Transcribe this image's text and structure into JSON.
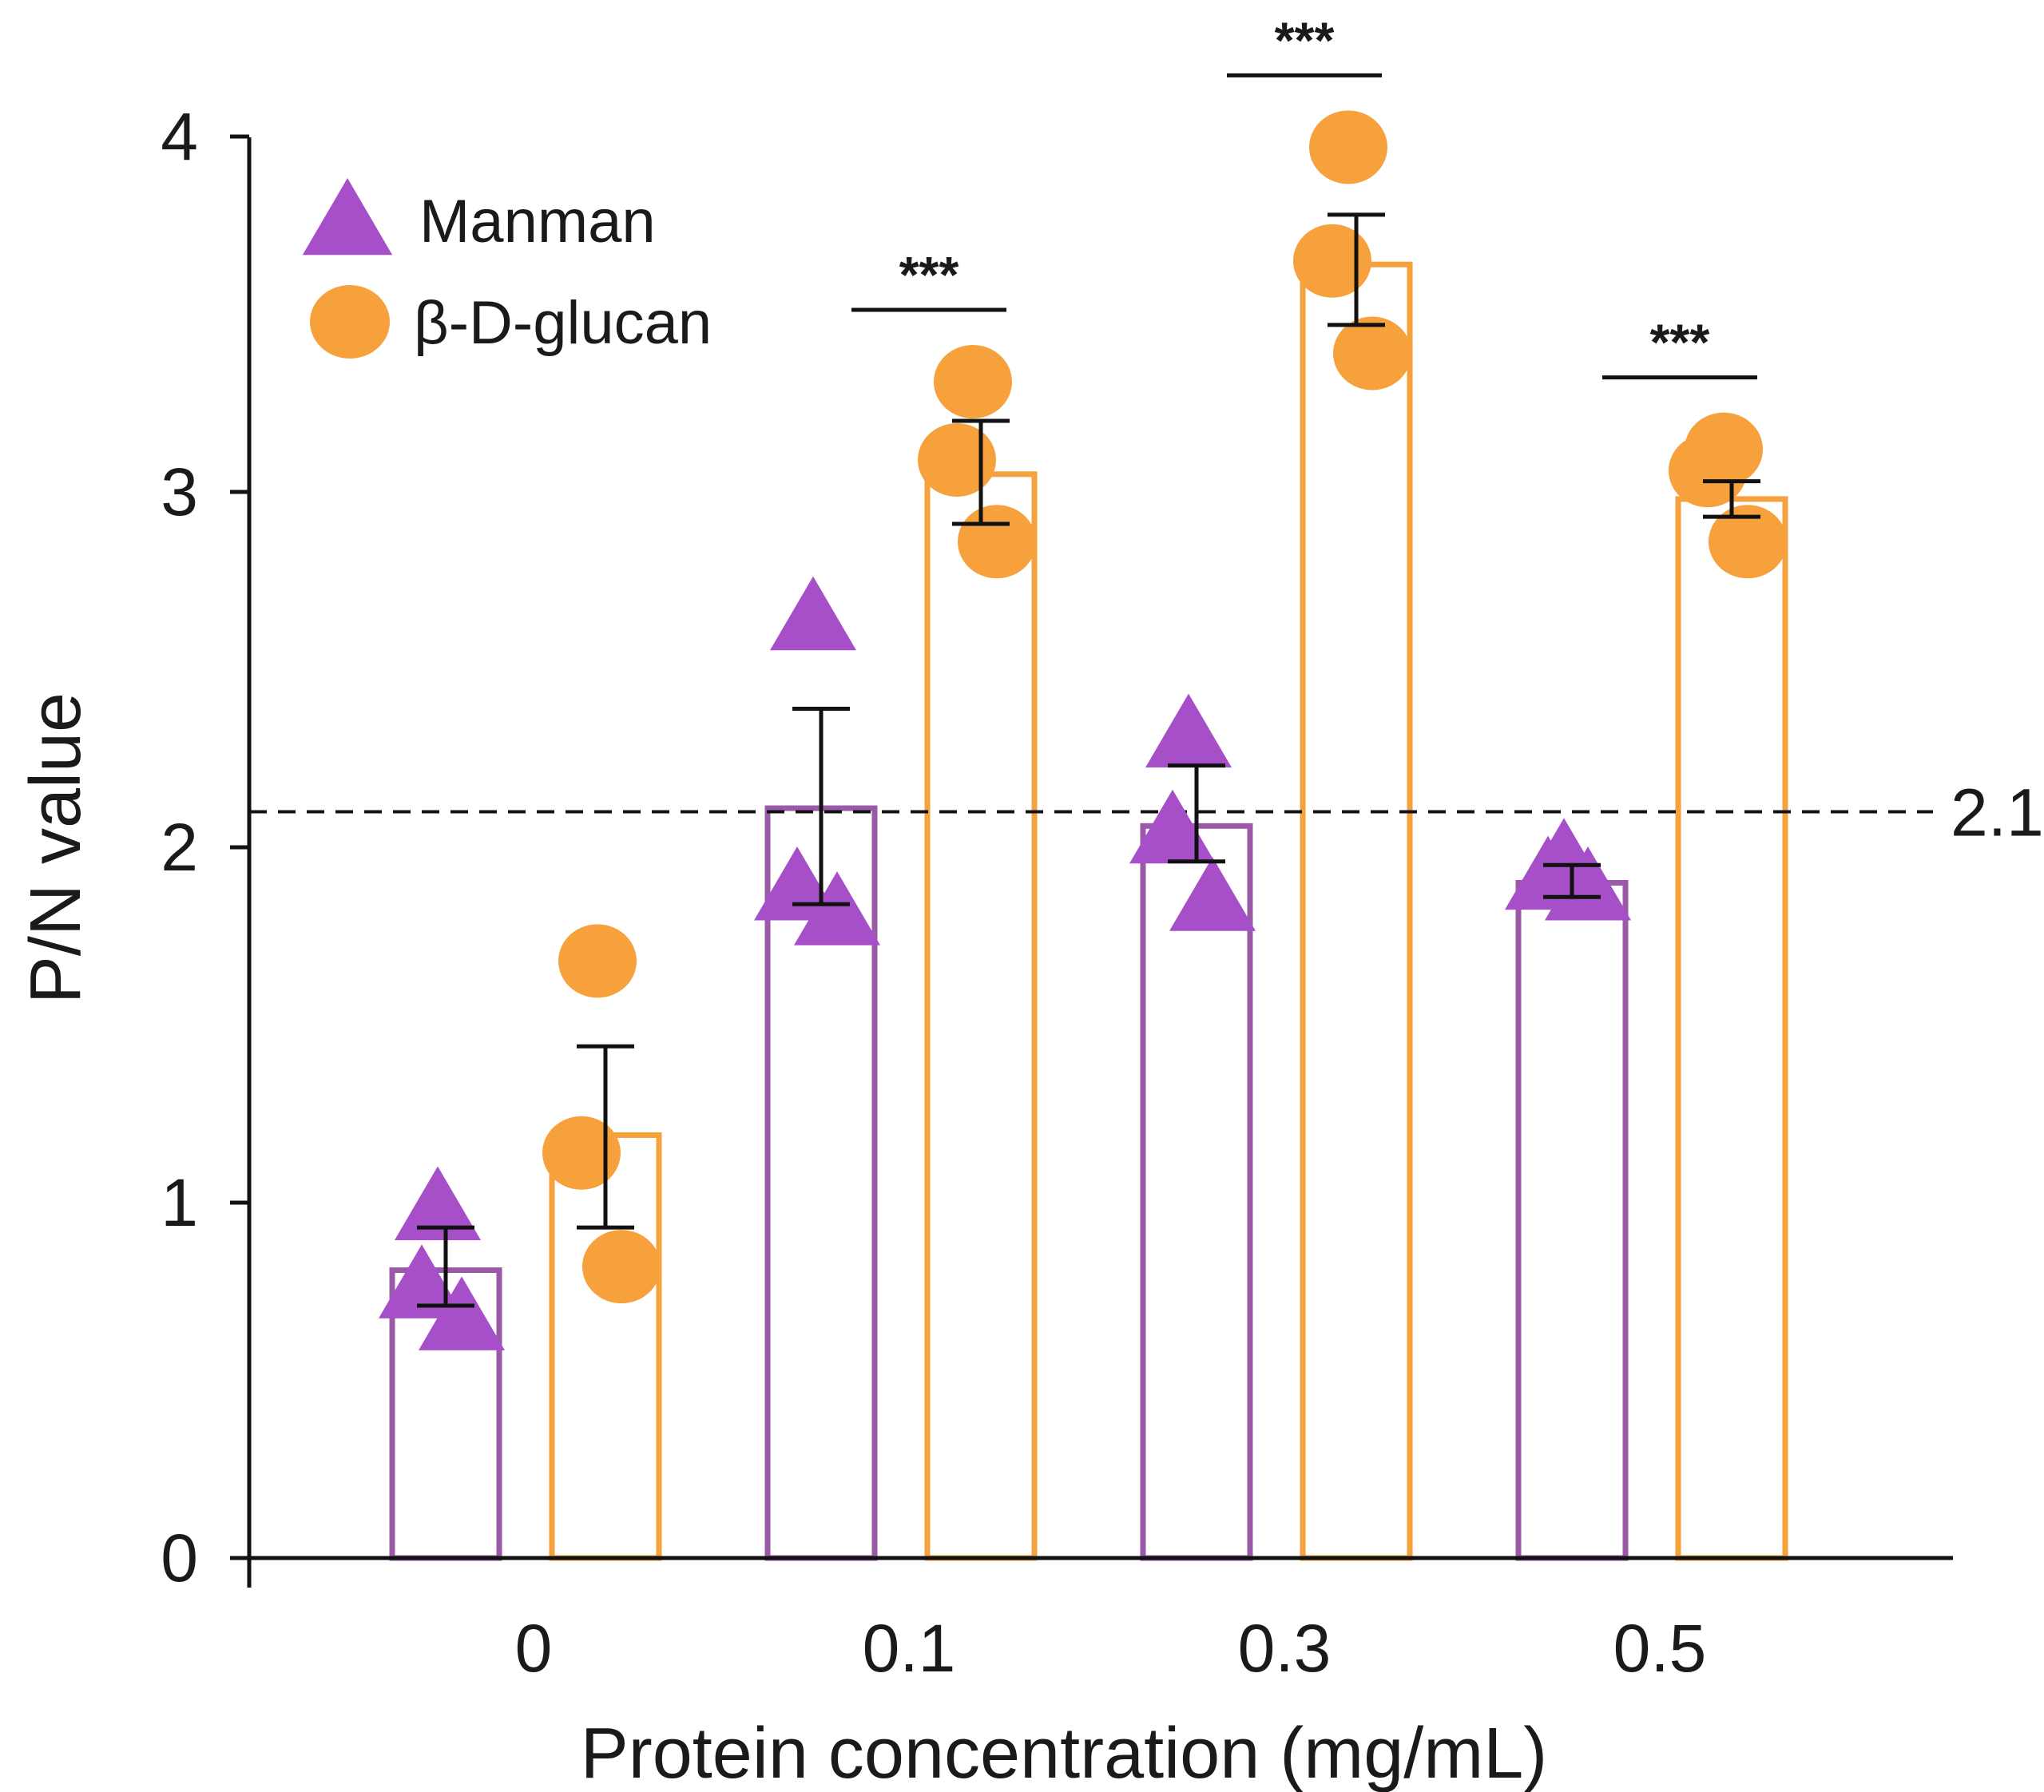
{
  "chart_data": {
    "type": "bar",
    "title": "",
    "xlabel": "Protein concentration (mg/mL)",
    "ylabel": "P/N value",
    "ylim": [
      0,
      4
    ],
    "yticks": [
      "0",
      "1",
      "2",
      "3",
      "4"
    ],
    "categories": [
      "0",
      "0.1",
      "0.3",
      "0.5"
    ],
    "grid": false,
    "legend_position": "top-left",
    "series": [
      {
        "name": "Manman",
        "color": "#a64fc9",
        "bar_stroke": "#9b5aa8",
        "marker": "triangle",
        "values": [
          0.81,
          2.11,
          2.06,
          1.9
        ],
        "error_low": [
          0.71,
          1.84,
          1.96,
          1.86
        ],
        "error_high": [
          0.93,
          2.39,
          2.23,
          1.95
        ],
        "points": [
          [
            0.99,
            0.77,
            0.68
          ],
          [
            2.65,
            1.89,
            1.82
          ],
          [
            2.32,
            2.05,
            1.86
          ],
          [
            1.97,
            1.92,
            1.89
          ]
        ]
      },
      {
        "name": "β-D-glucan",
        "color": "#f7a13d",
        "bar_stroke": "#f5a23c",
        "marker": "circle",
        "values": [
          1.19,
          3.05,
          3.64,
          2.98
        ],
        "error_low": [
          0.93,
          2.91,
          3.47,
          2.93
        ],
        "error_high": [
          1.44,
          3.2,
          3.78,
          3.03
        ],
        "points": [
          [
            1.68,
            1.14,
            0.82
          ],
          [
            3.31,
            3.09,
            2.86
          ],
          [
            3.97,
            3.65,
            3.39
          ],
          [
            3.12,
            3.06,
            2.86
          ]
        ]
      }
    ],
    "reference_line": {
      "value": 2.1,
      "label": "2.1",
      "style": "dashed"
    },
    "significance": [
      {
        "category_index": 1,
        "label": "***"
      },
      {
        "category_index": 2,
        "label": "***"
      },
      {
        "category_index": 3,
        "label": "***"
      }
    ]
  }
}
